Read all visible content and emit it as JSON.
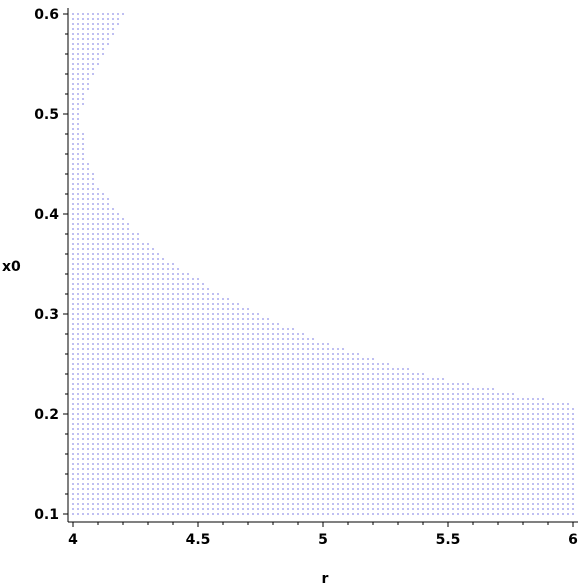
{
  "chart_data": {
    "type": "scatter",
    "xlabel": "r",
    "ylabel": "x0",
    "xlim": [
      4,
      6
    ],
    "ylim": [
      0.1,
      0.6
    ],
    "x_ticks": [
      {
        "value": 4,
        "label": "4"
      },
      {
        "value": 4.5,
        "label": "4.5"
      },
      {
        "value": 5,
        "label": "5"
      },
      {
        "value": 5.5,
        "label": "5.5"
      },
      {
        "value": 6,
        "label": "6"
      }
    ],
    "y_ticks": [
      {
        "value": 0.1,
        "label": "0.1"
      },
      {
        "value": 0.2,
        "label": "0.2"
      },
      {
        "value": 0.3,
        "label": "0.3"
      },
      {
        "value": 0.4,
        "label": "0.4"
      },
      {
        "value": 0.5,
        "label": "0.5"
      },
      {
        "value": 0.6,
        "label": "0.6"
      }
    ],
    "grid": false,
    "point_color": "#0000cc",
    "region_description_boundary": [
      {
        "r": 4.0,
        "x0_max": 0.6
      },
      {
        "r": 4.03,
        "x0_max": 0.5
      },
      {
        "r": 4.05,
        "x0_max": 0.46
      },
      {
        "r": 4.1,
        "x0_max": 0.43
      },
      {
        "r": 4.2,
        "x0_max": 0.395
      },
      {
        "r": 4.3,
        "x0_max": 0.37
      },
      {
        "r": 4.4,
        "x0_max": 0.35
      },
      {
        "r": 4.5,
        "x0_max": 0.335
      },
      {
        "r": 4.6,
        "x0_max": 0.318
      },
      {
        "r": 4.7,
        "x0_max": 0.305
      },
      {
        "r": 4.8,
        "x0_max": 0.293
      },
      {
        "r": 4.9,
        "x0_max": 0.283
      },
      {
        "r": 5.0,
        "x0_max": 0.273
      },
      {
        "r": 5.1,
        "x0_max": 0.264
      },
      {
        "r": 5.2,
        "x0_max": 0.256
      },
      {
        "r": 5.3,
        "x0_max": 0.248
      },
      {
        "r": 5.4,
        "x0_max": 0.241
      },
      {
        "r": 5.5,
        "x0_max": 0.235
      },
      {
        "r": 5.6,
        "x0_max": 0.229
      },
      {
        "r": 5.7,
        "x0_max": 0.224
      },
      {
        "r": 5.8,
        "x0_max": 0.219
      },
      {
        "r": 5.9,
        "x0_max": 0.214
      },
      {
        "r": 6.0,
        "x0_max": 0.21
      }
    ],
    "upper_lobe": [
      {
        "x0": 0.6,
        "r_max": 4.2
      },
      {
        "x0": 0.55,
        "r_max": 4.1
      },
      {
        "x0": 0.5,
        "r_max": 4.03
      },
      {
        "x0": 0.46,
        "r_max": 4.0
      }
    ]
  }
}
